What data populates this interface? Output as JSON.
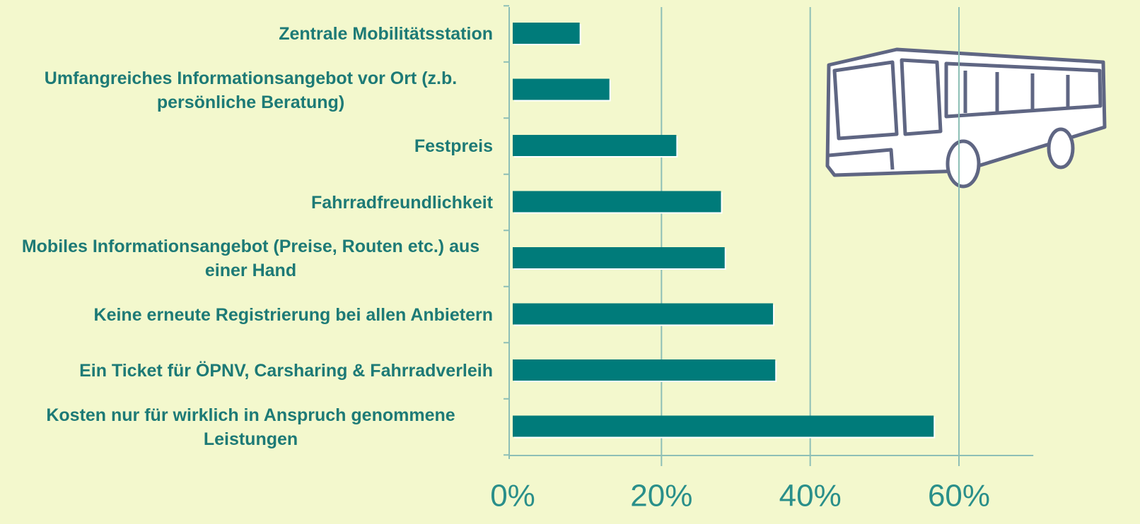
{
  "chart_data": {
    "type": "bar",
    "orientation": "horizontal",
    "categories": [
      "Zentrale Mobilitätsstation",
      "Umfangreiches Informationsangebot vor Ort (z.b. persönliche Beratung)",
      "Festpreis",
      "Fahrradfreundlichkeit",
      "Mobiles Informationsangebot (Preise, Routen etc.) aus einer Hand",
      "Keine erneute Registrierung bei  allen Anbietern",
      "Ein Ticket für ÖPNV, Carsharing & Fahrradverleih",
      "Kosten nur für wirklich in Anspruch genommene Leistungen"
    ],
    "values": [
      9,
      13,
      22,
      28,
      28.5,
      35,
      35.3,
      56.6
    ],
    "color": "#007b7a",
    "xlim": [
      0,
      70
    ],
    "xticks": [
      {
        "value": 0,
        "label": "0%"
      },
      {
        "value": 20,
        "label": "20%"
      },
      {
        "value": 40,
        "label": "40%"
      },
      {
        "value": 60,
        "label": "60%"
      }
    ],
    "grid": true
  }
}
